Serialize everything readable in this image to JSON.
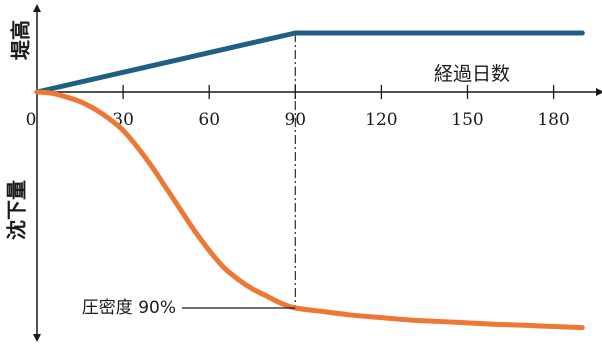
{
  "chart_data": {
    "type": "line",
    "xlabel": "経過日数",
    "y_upper_label": "堤高",
    "y_lower_label": "沈下量",
    "x_ticks": [
      0,
      30,
      60,
      90,
      120,
      150,
      180
    ],
    "xlim": [
      0,
      190
    ],
    "reference_day": 90,
    "annotation": {
      "text": "圧密度 90%",
      "x": 90,
      "y": 90
    },
    "colors": {
      "height": "#1f5f86",
      "settlement": "#ee7733",
      "axis": "#1a1a1a"
    },
    "series": [
      {
        "key": "height",
        "x": [
          0,
          90,
          190
        ],
        "y": [
          0,
          100,
          100
        ]
      },
      {
        "key": "settlement",
        "x": [
          0,
          5,
          10,
          15,
          20,
          25,
          30,
          35,
          40,
          45,
          50,
          55,
          60,
          65,
          70,
          75,
          80,
          85,
          90,
          100,
          110,
          120,
          130,
          140,
          150,
          160,
          170,
          180,
          190
        ],
        "y": [
          0,
          0.5,
          2,
          4,
          7,
          11,
          16,
          23,
          31,
          40,
          49,
          58,
          66,
          73,
          78,
          82,
          85,
          88,
          90,
          91.5,
          93,
          94,
          95,
          95.6,
          96.2,
          96.8,
          97.2,
          97.7,
          98.2
        ]
      }
    ]
  }
}
